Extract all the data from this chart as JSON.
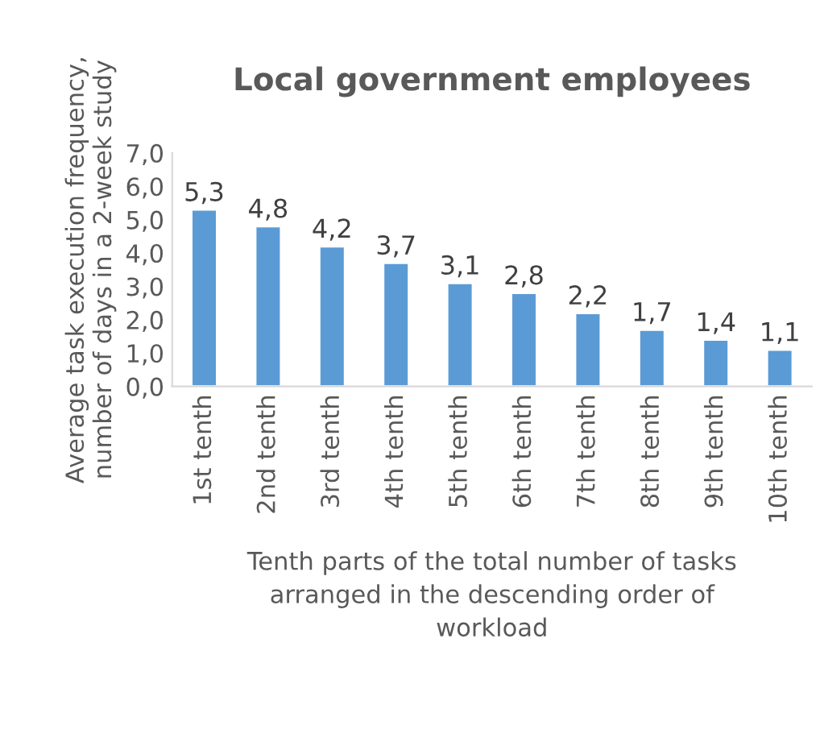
{
  "chart_data": {
    "type": "bar",
    "title": "Local government employees",
    "xlabel": "Tenth parts of the total number of tasks\narranged in the descending order of\nworkload",
    "ylabel": "Average task execution frequency,\nnumber of days in a 2-week study",
    "categories": [
      "1st tenth",
      "2nd tenth",
      "3rd tenth",
      "4th tenth",
      "5th tenth",
      "6th tenth",
      "7th tenth",
      "8th tenth",
      "9th tenth",
      "10th tenth"
    ],
    "values": [
      5.3,
      4.8,
      4.2,
      3.7,
      3.1,
      2.8,
      2.2,
      1.7,
      1.4,
      1.1
    ],
    "value_labels": [
      "5,3",
      "4,8",
      "4,2",
      "3,7",
      "3,1",
      "2,8",
      "2,2",
      "1,7",
      "1,4",
      "1,1"
    ],
    "color": "#5b9bd5",
    "ylim": [
      0,
      7
    ],
    "yticks": [
      {
        "value": 0,
        "label": "0,0"
      },
      {
        "value": 1,
        "label": "1,0"
      },
      {
        "value": 2,
        "label": "2,0"
      },
      {
        "value": 3,
        "label": "3,0"
      },
      {
        "value": 4,
        "label": "4,0"
      },
      {
        "value": 5,
        "label": "5,0"
      },
      {
        "value": 6,
        "label": "6,0"
      },
      {
        "value": 7,
        "label": "7,0"
      }
    ],
    "grid": false
  }
}
